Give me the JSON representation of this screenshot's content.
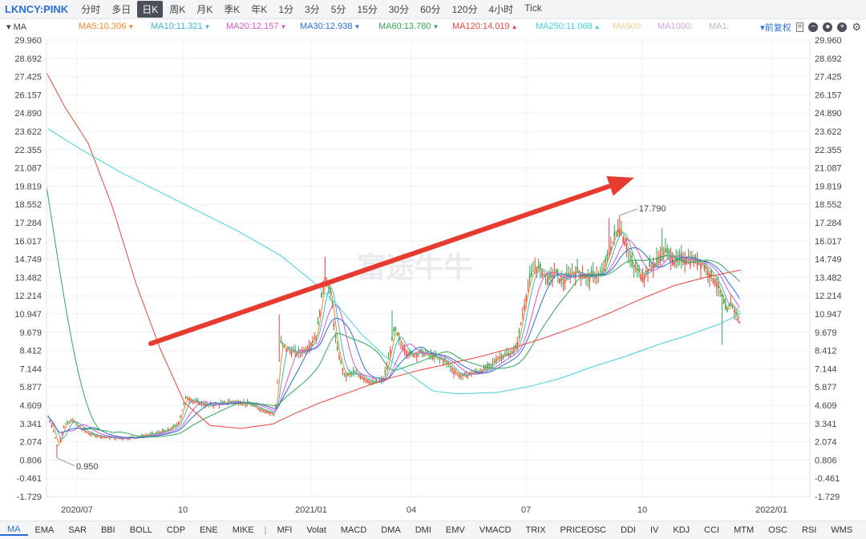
{
  "header": {
    "ticker": "LKNCY:PINK",
    "periods": [
      "分时",
      "多日",
      "日K",
      "周K",
      "月K",
      "季K",
      "年K",
      "1分",
      "3分",
      "5分",
      "15分",
      "30分",
      "60分",
      "120分",
      "4小时",
      "Tick"
    ],
    "active_period": "日K"
  },
  "ma_bar": {
    "label": "MA",
    "adjust": "前复权",
    "items": [
      {
        "text": "MA5:10.306",
        "color": "#f08a24",
        "arrow": "▼"
      },
      {
        "text": "MA10:11.321",
        "color": "#3ab6d8",
        "arrow": "▼"
      },
      {
        "text": "MA20:12.157",
        "color": "#d855c8",
        "arrow": "▼"
      },
      {
        "text": "MA30:12.938",
        "color": "#2a6fd6",
        "arrow": "▼"
      },
      {
        "text": "MA60:13.780",
        "color": "#2fa84f",
        "arrow": "▼"
      },
      {
        "text": "MA120:14.019",
        "color": "#e8453c",
        "arrow": "▲"
      },
      {
        "text": "MA250:11.068",
        "color": "#3fd2e0",
        "arrow": "▲"
      },
      {
        "text": "MA500:",
        "color": "#f4d08a",
        "arrow": ""
      },
      {
        "text": "MA1000:",
        "color": "#d9a4e8",
        "arrow": ""
      },
      {
        "text": "MA1:",
        "color": "#bbbbbb",
        "arrow": ""
      }
    ]
  },
  "chart_data": {
    "type": "line",
    "title": "",
    "ylim": [
      -1.729,
      29.96
    ],
    "y_ticks": [
      "29.960",
      "28.692",
      "27.425",
      "26.157",
      "24.890",
      "23.622",
      "22.355",
      "21.087",
      "19.819",
      "18.552",
      "17.284",
      "16.017",
      "14.749",
      "13.482",
      "12.214",
      "10.947",
      "9.679",
      "8.412",
      "7.144",
      "5.877",
      "4.609",
      "3.341",
      "2.074",
      "0.806",
      "-0.461",
      "-1.729"
    ],
    "x_ticks": [
      "2020/07",
      "10",
      "2021/01",
      "04",
      "07",
      "10",
      "2022/01"
    ],
    "annotations": {
      "high": "17.790",
      "low": "0.950"
    },
    "watermark": "富途牛牛",
    "series": [
      {
        "name": "MA5",
        "color": "#f08a24"
      },
      {
        "name": "MA10",
        "color": "#3ab6d8"
      },
      {
        "name": "MA20",
        "color": "#d855c8"
      },
      {
        "name": "MA30",
        "color": "#2a6fd6"
      },
      {
        "name": "MA60",
        "color": "#2fa84f"
      },
      {
        "name": "MA120",
        "color": "#e8453c"
      },
      {
        "name": "MA250",
        "color": "#3fd2e0"
      }
    ],
    "grid": true
  },
  "indicators": {
    "tabs": [
      "MA",
      "EMA",
      "SAR",
      "BBI",
      "BOLL",
      "CDP",
      "ENE",
      "MIKE",
      "MFI",
      "Volat",
      "MACD",
      "DMA",
      "DMI",
      "EMV",
      "VMACD",
      "TRIX",
      "PRICEOSC",
      "DDI",
      "IV",
      "KDJ",
      "CCI",
      "MTM",
      "OSC",
      "RSI",
      "WMS"
    ],
    "active": "MA"
  },
  "colors": {
    "up": "#e8453c",
    "down": "#2fa84f",
    "arrow": "#e63b2e",
    "accent": "#2a6fd6"
  }
}
